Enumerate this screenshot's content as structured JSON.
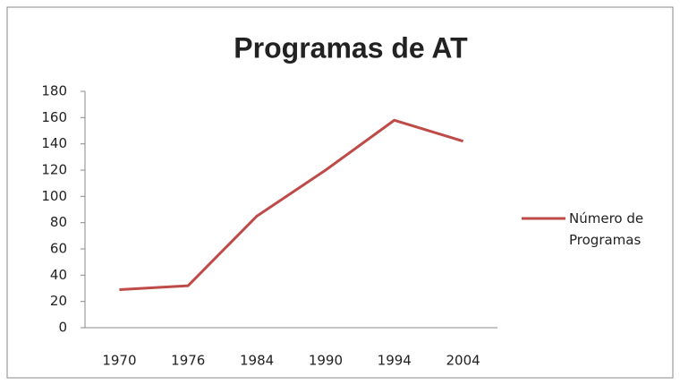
{
  "chart_data": {
    "type": "line",
    "title": "Programas de AT",
    "categories": [
      "1970",
      "1976",
      "1984",
      "1990",
      "1994",
      "2004"
    ],
    "series": [
      {
        "name": "Número de Programas",
        "color": "#be4b48",
        "values": [
          29,
          32,
          85,
          120,
          158,
          142
        ]
      }
    ],
    "ylim": [
      0,
      180
    ],
    "yticks": [
      0,
      20,
      40,
      60,
      80,
      100,
      120,
      140,
      160,
      180
    ],
    "grid": false,
    "legend": "right"
  }
}
